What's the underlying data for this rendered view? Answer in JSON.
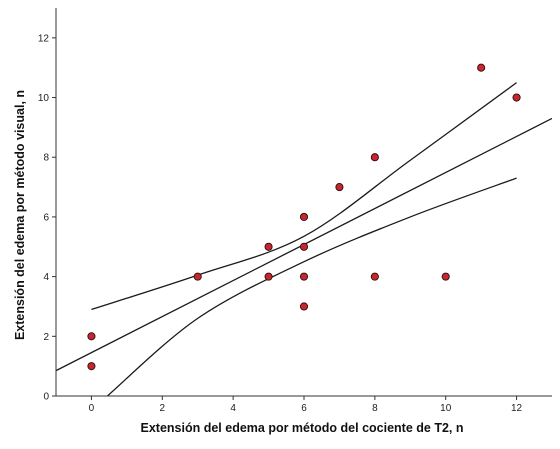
{
  "chart_data": {
    "type": "scatter",
    "title": "",
    "xlabel": "Extensión del edema por método del cociente de T2, n",
    "ylabel": "Extensión del edema por método visual, n",
    "xlim": [
      -1,
      13
    ],
    "ylim": [
      0,
      13
    ],
    "x_ticks": [
      "0",
      "2",
      "4",
      "6",
      "8",
      "10",
      "12"
    ],
    "y_ticks": [
      "0",
      "2",
      "4",
      "6",
      "8",
      "10",
      "12"
    ],
    "grid": false,
    "legend": "none",
    "point_color": "#c8262e",
    "points": [
      {
        "x": 0,
        "y": 2
      },
      {
        "x": 0,
        "y": 1
      },
      {
        "x": 3,
        "y": 4
      },
      {
        "x": 5,
        "y": 5
      },
      {
        "x": 5,
        "y": 4
      },
      {
        "x": 6,
        "y": 6
      },
      {
        "x": 6,
        "y": 5
      },
      {
        "x": 6,
        "y": 4
      },
      {
        "x": 6,
        "y": 3
      },
      {
        "x": 7,
        "y": 7
      },
      {
        "x": 8,
        "y": 8
      },
      {
        "x": 8,
        "y": 4
      },
      {
        "x": 10,
        "y": 4
      },
      {
        "x": 11,
        "y": 11
      },
      {
        "x": 12,
        "y": 10
      }
    ],
    "fit_lines": [
      {
        "kind": "regression",
        "points": [
          [
            -1,
            0.85
          ],
          [
            13,
            9.3
          ]
        ]
      },
      {
        "kind": "ci_upper",
        "points": [
          [
            0,
            2.9
          ],
          [
            3,
            4.05
          ],
          [
            6,
            5.35
          ],
          [
            9,
            7.9
          ],
          [
            12,
            10.5
          ]
        ]
      },
      {
        "kind": "ci_lower",
        "points": [
          [
            0.45,
            0
          ],
          [
            3,
            2.6
          ],
          [
            6,
            4.5
          ],
          [
            9,
            6.0
          ],
          [
            12,
            7.3
          ]
        ]
      }
    ]
  }
}
